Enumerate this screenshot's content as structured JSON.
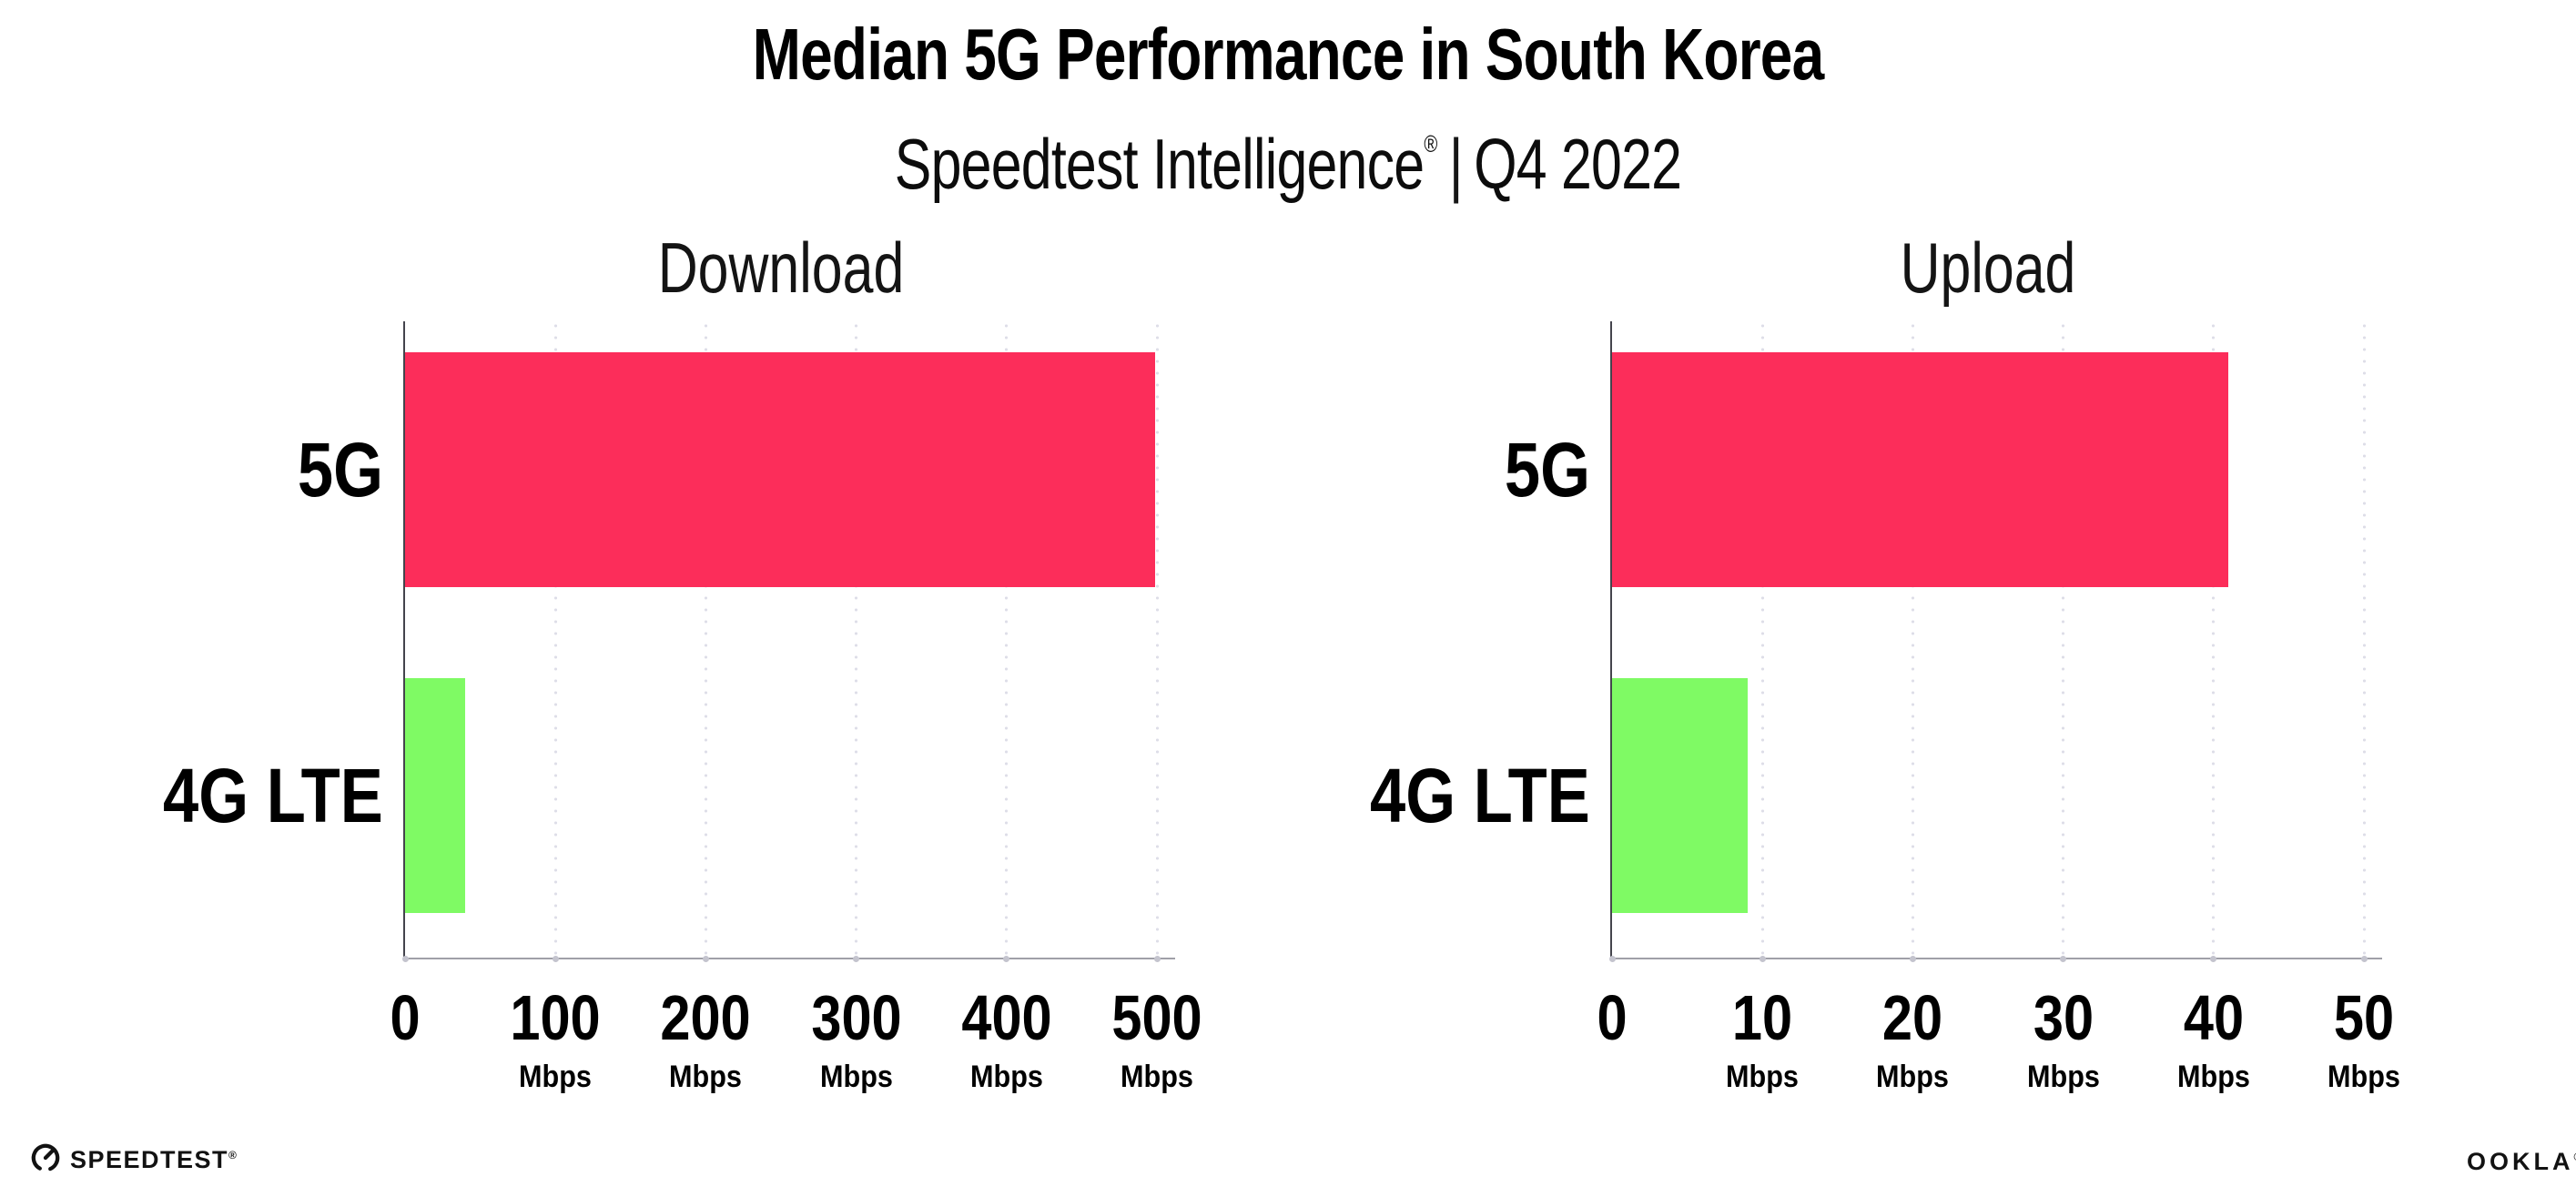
{
  "header": {
    "title": "Median 5G Performance in South Korea",
    "subtitle": {
      "brand": "Speedtest Intelligence",
      "registered_mark": "®",
      "separator": "|",
      "period": "Q4 2022"
    }
  },
  "chart_data": [
    {
      "type": "bar",
      "orientation": "horizontal",
      "title": "Download",
      "categories": [
        "5G",
        "4G LTE"
      ],
      "values": [
        499,
        40
      ],
      "unit": "Mbps",
      "xlim": [
        0,
        500
      ],
      "xticks": [
        0,
        100,
        200,
        300,
        400,
        500
      ],
      "bar_colors": [
        "#FC2D5A",
        "#7FFA64"
      ],
      "grid": "dotted vertical gridlines at each tick",
      "legend": "none"
    },
    {
      "type": "bar",
      "orientation": "horizontal",
      "title": "Upload",
      "categories": [
        "5G",
        "4G LTE"
      ],
      "values": [
        41,
        9
      ],
      "unit": "Mbps",
      "xlim": [
        0,
        50
      ],
      "xticks": [
        0,
        10,
        20,
        30,
        40,
        50
      ],
      "bar_colors": [
        "#FC2D5A",
        "#7FFA64"
      ],
      "grid": "dotted vertical gridlines at each tick",
      "legend": "none"
    }
  ],
  "footer": {
    "speedtest_wordmark": "SPEEDTEST",
    "speedtest_trademark": "®",
    "ookla_wordmark": "OOKLA",
    "ookla_trademark": "®"
  },
  "colors": {
    "background": "#FFFFFF",
    "bar_5g": "#FC2D5A",
    "bar_4g_lte": "#7FFA64",
    "grid_dots": "#DEDEE8",
    "y_axis_line": "#44444C",
    "x_axis_line": "#A0A0A8",
    "text": "#000000"
  }
}
